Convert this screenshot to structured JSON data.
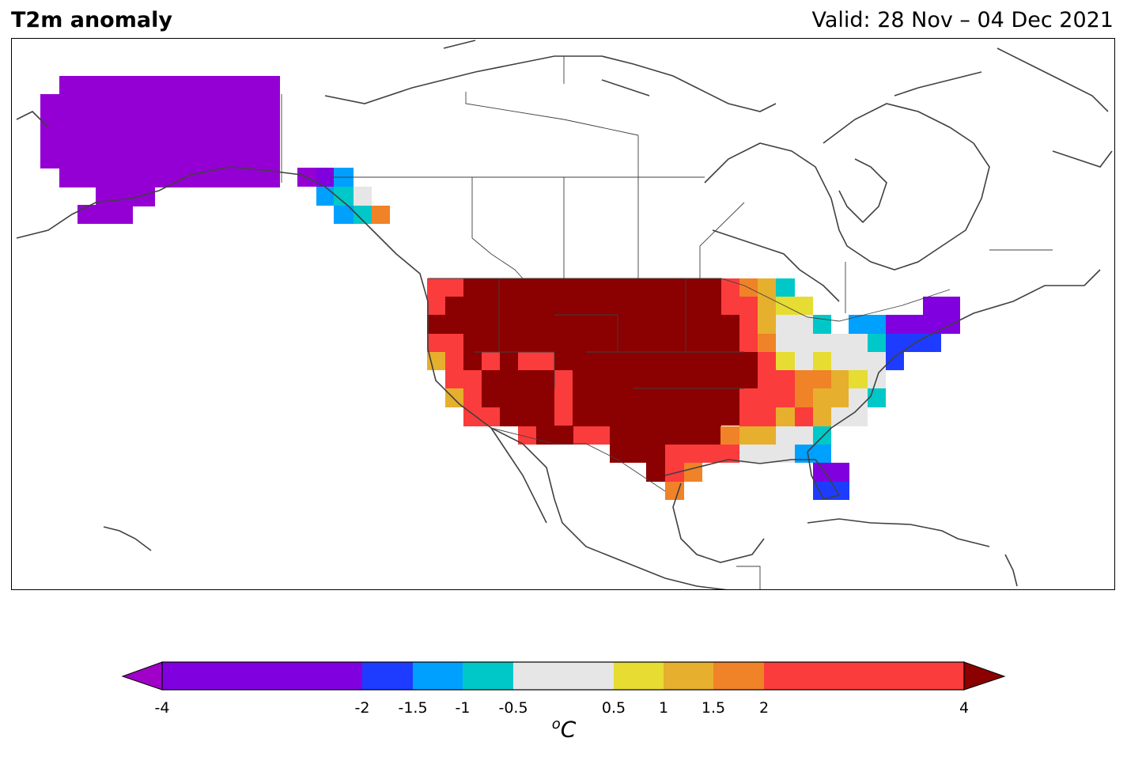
{
  "header": {
    "title": "T2m anomaly",
    "valid": "Valid: 28 Nov – 04 Dec 2021"
  },
  "colorbar": {
    "unit_prefix": "o",
    "unit_main": "C",
    "ticks": [
      "-4",
      "-2",
      "-1.5",
      "-1",
      "-0.5",
      "0.5",
      "1",
      "1.5",
      "2",
      "4"
    ],
    "bins": [
      {
        "from": -4,
        "to": -2,
        "color": "#8000e0"
      },
      {
        "from": -2,
        "to": -1.5,
        "color": "#1e3cff"
      },
      {
        "from": -1.5,
        "to": -1,
        "color": "#00a0ff"
      },
      {
        "from": -1,
        "to": -0.5,
        "color": "#00c8c8"
      },
      {
        "from": -0.5,
        "to": 0.5,
        "color": "#e6e6e6"
      },
      {
        "from": 0.5,
        "to": 1,
        "color": "#e6dc32"
      },
      {
        "from": 1,
        "to": 1.5,
        "color": "#e6af2d"
      },
      {
        "from": 1.5,
        "to": 2,
        "color": "#f08228"
      },
      {
        "from": 2,
        "to": 4,
        "color": "#fa3c3c"
      }
    ],
    "under_color": "#a000c8",
    "over_color": "#8b0000"
  }
}
